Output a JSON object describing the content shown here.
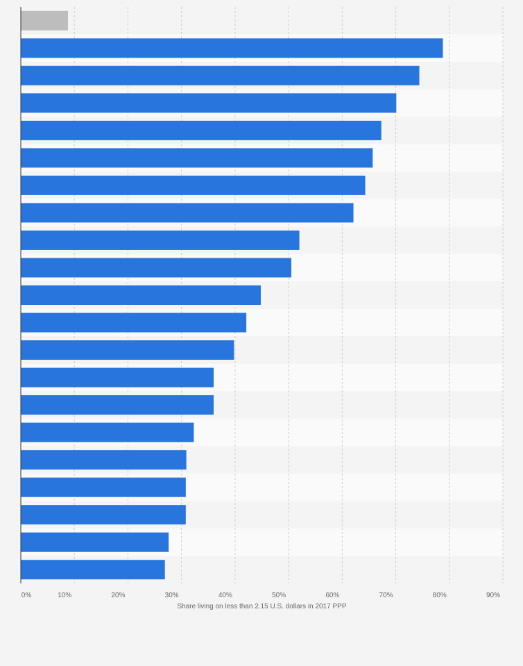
{
  "chart_data": {
    "type": "bar",
    "orientation": "horizontal",
    "xlabel": "Share living on less than 2.15 U.S. dollars in 2017 PPP",
    "ylabel": "",
    "xlim": [
      0,
      90
    ],
    "x_ticks": [
      "0%",
      "10%",
      "20%",
      "30%",
      "40%",
      "50%",
      "60%",
      "70%",
      "80%",
      "90%"
    ],
    "grid": true,
    "values": [
      8.8,
      78.8,
      74.4,
      70.1,
      67.3,
      65.7,
      64.3,
      62.1,
      52.0,
      50.5,
      44.8,
      42.1,
      39.8,
      36.0,
      36.0,
      32.3,
      30.9,
      30.8,
      30.8,
      27.6,
      26.9
    ],
    "highlight_index": 0,
    "colors": {
      "bar": "#2876dd",
      "highlight_bar": "#bdbdbd",
      "grid": "#cccccc",
      "axis": "#333333"
    }
  }
}
